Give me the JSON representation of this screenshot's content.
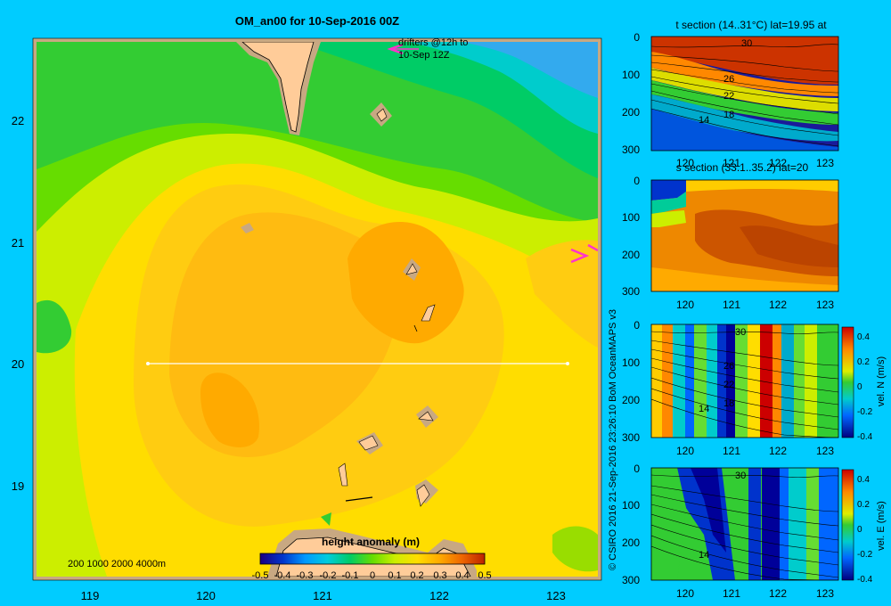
{
  "chart_data": [
    {
      "type": "heatmap",
      "title": "OM_an00 for 10-Sep-2016 00Z",
      "xticks": [
        "119",
        "120",
        "121",
        "122",
        "123"
      ],
      "yticks": [
        "22",
        "21",
        "20",
        "19"
      ],
      "xlim": [
        118.5,
        123.5
      ],
      "ylim": [
        18.25,
        22.7
      ],
      "drifter_note_1": "drifters @12h to",
      "drifter_note_2": "10-Sep 12Z",
      "depth_legend": "200  1000  2000  4000m",
      "colorbar": {
        "title": "height anomaly  (m)",
        "range": [
          -0.5,
          0.5
        ],
        "ticks": [
          "-0.5",
          "-0.4",
          "-0.3",
          "-0.2",
          "-0.1",
          "0",
          "0.1",
          "0.2",
          "0.3",
          "0.4",
          "0.5"
        ]
      },
      "section_line": {
        "lon_start": 119.5,
        "lon_end": 123.2,
        "lat": 20.0
      }
    },
    {
      "type": "heatmap",
      "title": "t section (14..31°C) lat=19.95 at",
      "xticks": [
        "120",
        "121",
        "122",
        "123"
      ],
      "yticks": [
        "0",
        "100",
        "200",
        "300"
      ],
      "contour_labels": [
        "30",
        "26",
        "22",
        "18",
        "14"
      ]
    },
    {
      "type": "heatmap",
      "title": "s section (33.1..35.2) lat=20",
      "xticks": [
        "120",
        "121",
        "122",
        "123"
      ],
      "yticks": [
        "0",
        "100",
        "200",
        "300"
      ]
    },
    {
      "type": "heatmap",
      "title": "",
      "xticks": [
        "120",
        "121",
        "122",
        "123"
      ],
      "yticks": [
        "0",
        "100",
        "200",
        "300"
      ],
      "contour_labels": [
        "30",
        "26",
        "22",
        "18",
        "14"
      ],
      "colorbar": {
        "label": "vel. N (m/s)",
        "ticks": [
          "0.4",
          "0.2",
          "0",
          "-0.2",
          "-0.4"
        ]
      }
    },
    {
      "type": "heatmap",
      "title": "",
      "xticks": [
        "120",
        "121",
        "122",
        "123"
      ],
      "yticks": [
        "0",
        "100",
        "200",
        "300"
      ],
      "contour_labels": [
        "30",
        "14"
      ],
      "colorbar": {
        "label": "vel. E (m/s)",
        "ticks": [
          "0.4",
          "0.2",
          "0",
          "-0.2",
          "-0.4"
        ]
      }
    }
  ],
  "credit": "© CSIRO 2016   21-Sep-2016 23:26:10 BoM OceanMAPS v3",
  "colors": {
    "background": "#00ccff",
    "land": "#ffcc99",
    "shelf": "#c8a882",
    "drifter": "#ff33cc"
  }
}
